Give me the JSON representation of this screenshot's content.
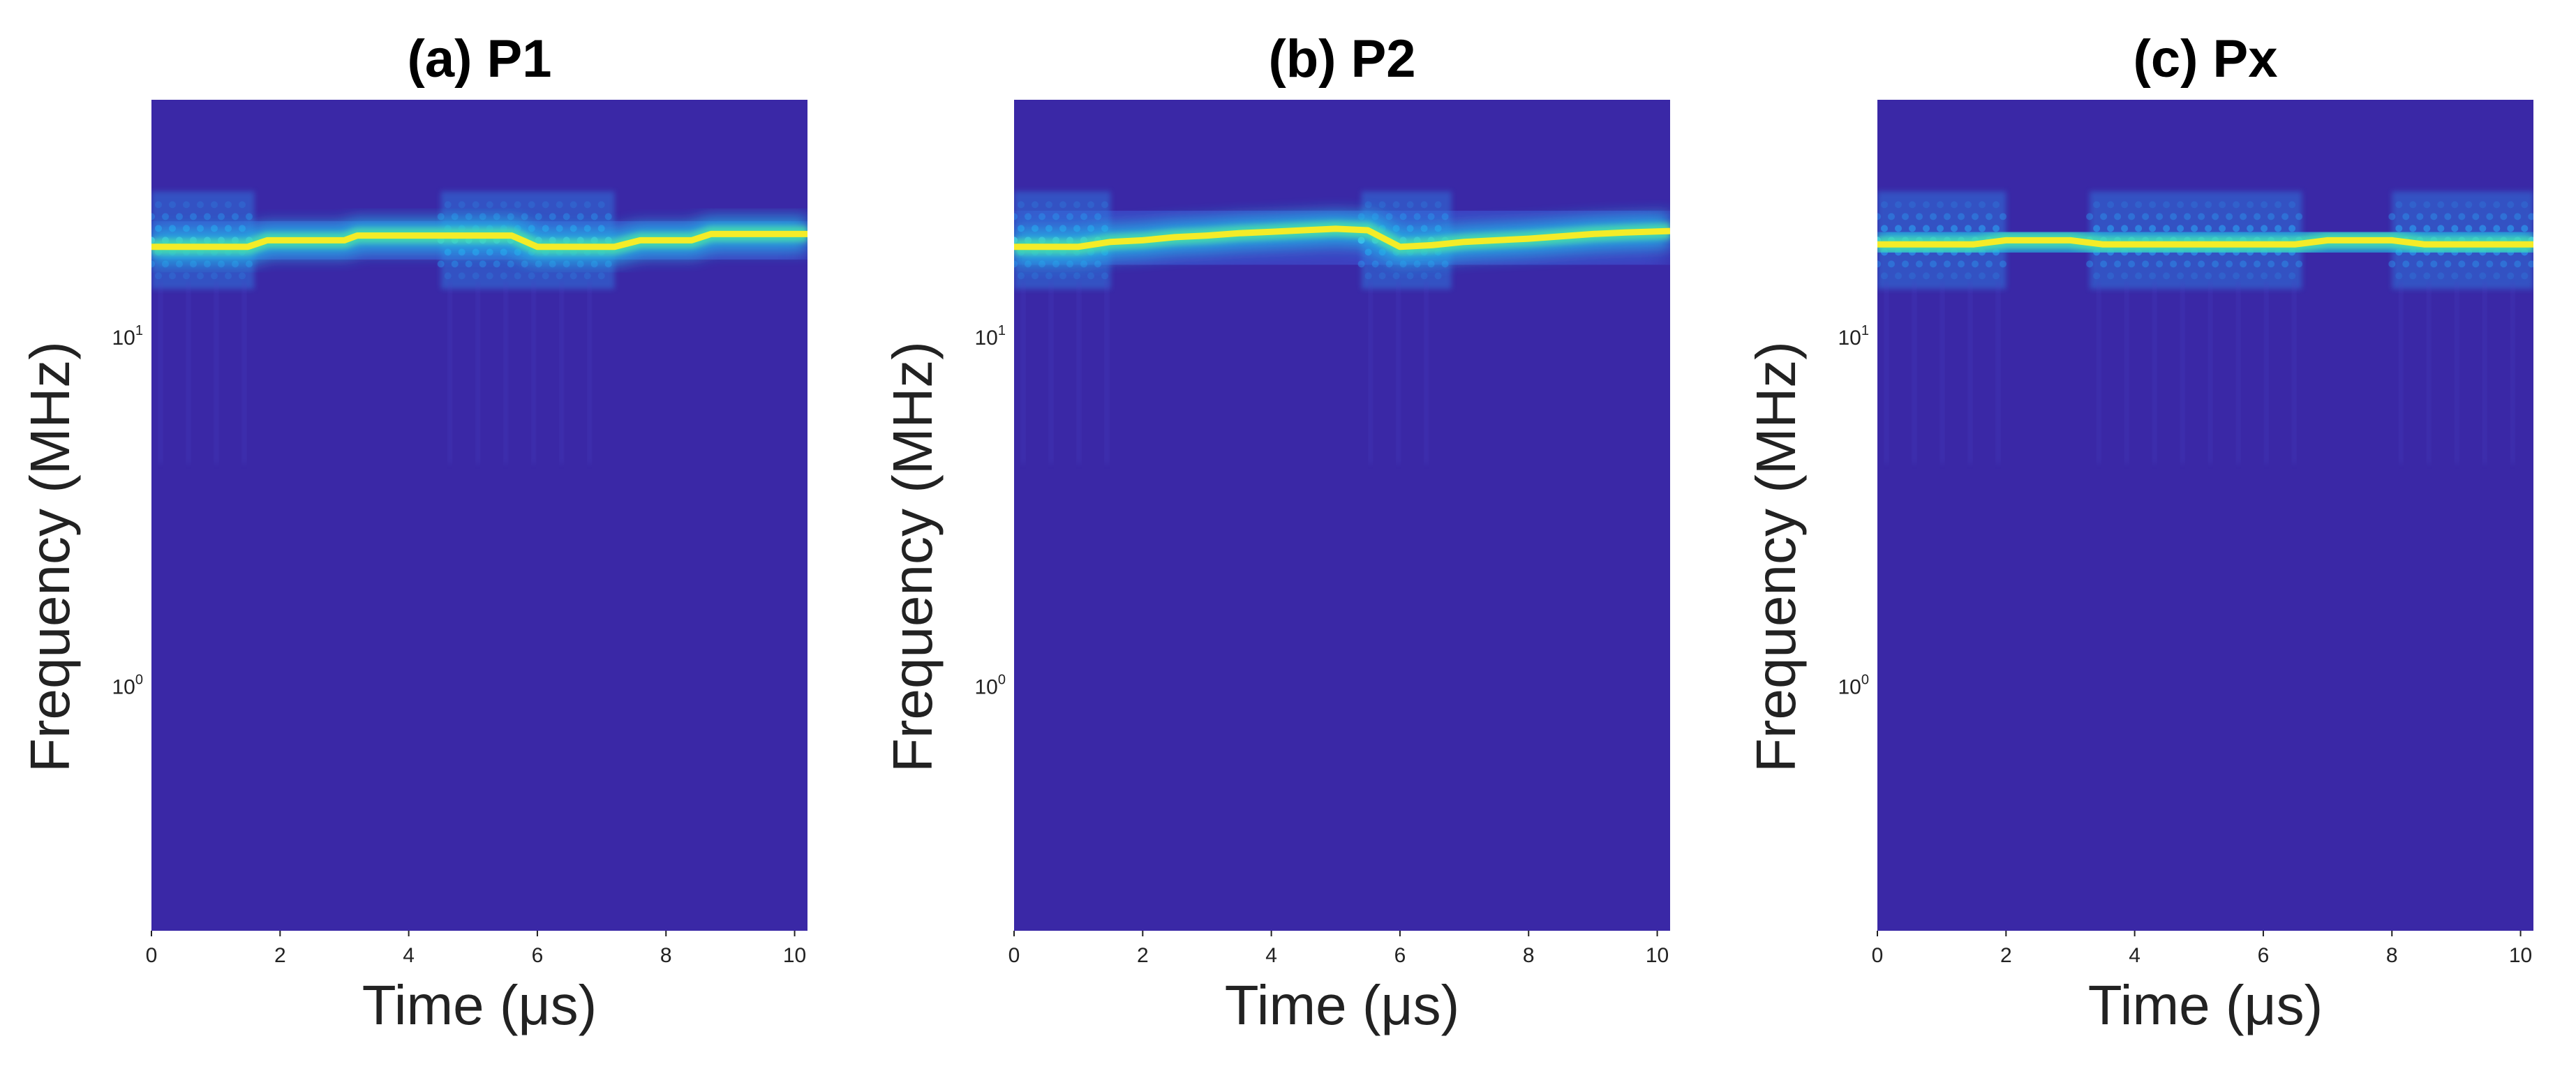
{
  "chart_data": [
    {
      "type": "heatmap",
      "panel": "(a)",
      "title": "P1",
      "xlabel": "Time (μs)",
      "ylabel": "Frequency (MHz)",
      "xlim": [
        0,
        10.2
      ],
      "ylim": [
        0.2,
        48
      ],
      "yscale": "log",
      "xticks": [
        0,
        2,
        4,
        6,
        8,
        10
      ],
      "yticks": [
        {
          "value": 1,
          "label": "10^0"
        },
        {
          "value": 10,
          "label": "10^1"
        }
      ],
      "colormap": "parula",
      "grid": false,
      "ridge": {
        "x": [
          0,
          0.5,
          1.0,
          1.5,
          1.8,
          2.2,
          2.6,
          3.0,
          3.2,
          3.6,
          4.0,
          4.4,
          4.8,
          5.2,
          5.6,
          6.0,
          6.4,
          6.8,
          7.2,
          7.6,
          8.0,
          8.4,
          8.7,
          9.0,
          9.4,
          9.8,
          10.2
        ],
        "y": [
          18.2,
          18.2,
          18.2,
          18.2,
          19.0,
          19.0,
          19.0,
          19.0,
          19.6,
          19.6,
          19.6,
          19.6,
          19.6,
          19.6,
          19.6,
          18.2,
          18.2,
          18.2,
          18.2,
          19.0,
          19.0,
          19.0,
          19.8,
          19.8,
          19.8,
          19.8,
          19.8
        ]
      },
      "interference_segments": [
        [
          0,
          1.6
        ],
        [
          4.5,
          7.2
        ]
      ]
    },
    {
      "type": "heatmap",
      "panel": "(b)",
      "title": "P2",
      "xlabel": "Time (μs)",
      "ylabel": "Frequency (MHz)",
      "xlim": [
        0,
        10.2
      ],
      "ylim": [
        0.2,
        48
      ],
      "yscale": "log",
      "xticks": [
        0,
        2,
        4,
        6,
        8,
        10
      ],
      "yticks": [
        {
          "value": 1,
          "label": "10^0"
        },
        {
          "value": 10,
          "label": "10^1"
        }
      ],
      "colormap": "parula",
      "grid": false,
      "ridge": {
        "x": [
          0,
          0.5,
          1.0,
          1.5,
          2.0,
          2.5,
          3.0,
          3.5,
          4.0,
          4.5,
          5.0,
          5.5,
          6.0,
          6.5,
          7.0,
          7.5,
          8.0,
          8.5,
          9.0,
          9.5,
          10.2
        ],
        "y": [
          18.2,
          18.2,
          18.2,
          18.8,
          19.0,
          19.4,
          19.6,
          19.9,
          20.1,
          20.3,
          20.5,
          20.3,
          18.2,
          18.4,
          18.8,
          19.0,
          19.2,
          19.5,
          19.8,
          20.0,
          20.2
        ]
      },
      "interference_segments": [
        [
          0,
          1.5
        ],
        [
          5.4,
          6.8
        ]
      ]
    },
    {
      "type": "heatmap",
      "panel": "(c)",
      "title": "Px",
      "xlabel": "Time (μs)",
      "ylabel": "Frequency (MHz)",
      "xlim": [
        0,
        10.2
      ],
      "ylim": [
        0.2,
        48
      ],
      "yscale": "log",
      "xticks": [
        0,
        2,
        4,
        6,
        8,
        10
      ],
      "yticks": [
        {
          "value": 1,
          "label": "10^0"
        },
        {
          "value": 10,
          "label": "10^1"
        }
      ],
      "colormap": "parula",
      "grid": false,
      "ridge": {
        "x": [
          0,
          0.5,
          1.0,
          1.5,
          2.0,
          2.5,
          3.0,
          3.5,
          4.0,
          4.5,
          5.0,
          5.5,
          6.0,
          6.5,
          7.0,
          7.5,
          8.0,
          8.5,
          9.0,
          9.5,
          10.2
        ],
        "y": [
          18.5,
          18.5,
          18.5,
          18.5,
          19.0,
          19.0,
          19.0,
          18.5,
          18.5,
          18.5,
          18.5,
          18.5,
          18.5,
          18.5,
          19.0,
          19.0,
          19.0,
          18.5,
          18.5,
          18.5,
          18.5
        ]
      },
      "interference_segments": [
        [
          0,
          2.0
        ],
        [
          3.3,
          6.6
        ],
        [
          8.0,
          10.2
        ]
      ]
    }
  ]
}
